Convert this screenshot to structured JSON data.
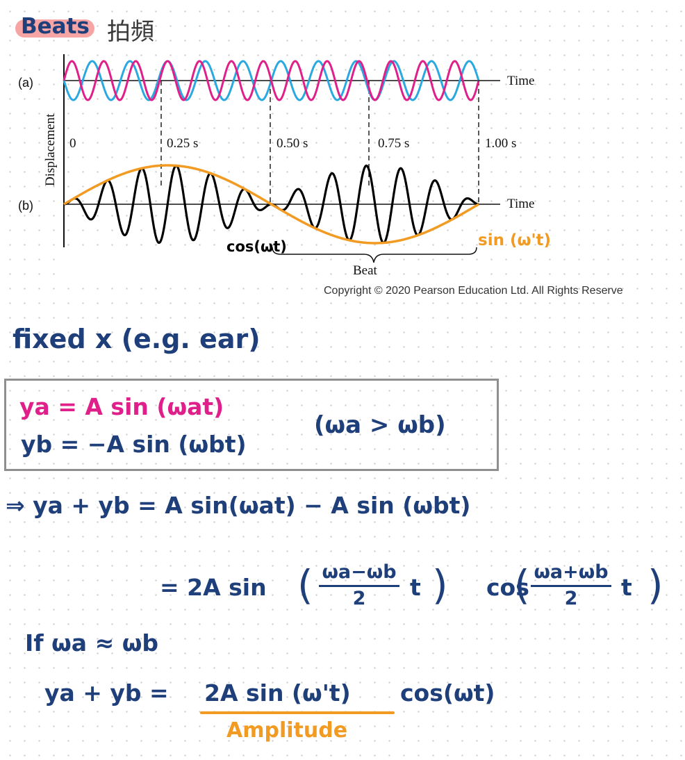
{
  "header": {
    "title": "Beats",
    "title_cjk": "拍頻"
  },
  "figure": {
    "panel_a_label": "(a)",
    "panel_b_label": "(b)",
    "y_axis_label": "Displacement",
    "time_label_a": "Time",
    "time_label_b": "Time",
    "tick_labels": [
      "0",
      "0.25 s",
      "0.50 s",
      "0.75 s",
      "1.00 s"
    ],
    "beat_label": "Beat",
    "annotation_cos": "cos(ωt)",
    "annotation_sin": "sin (ω't)",
    "colors": {
      "wave_a": "#e0208a",
      "wave_b": "#2aa8e0",
      "sum": "#000000",
      "envelope": "#f29b22"
    }
  },
  "copyright": "Copyright © 2020 Pearson Education Ltd. All Rights Reserve",
  "notes": {
    "fixed_line": "fixed x  (e.g. ear)",
    "ya": "ya = A sin (ωat)",
    "yb": "yb = −A sin (ωbt)",
    "condition": "(ωa > ωb)",
    "eq1": "⇒  ya + yb  =  A sin(ωat)  −  A sin (ωbt)",
    "eq2_left": "=  2A sin",
    "frac1_num": "ωa−ωb",
    "frac1_den": "2",
    "eq2_t1": "t",
    "eq2_cos": "cos",
    "frac2_num": "ωa+ωb",
    "frac2_den": "2",
    "eq2_t2": "t",
    "if_line": "If  ωa ≈ ωb",
    "final_left": "ya + yb  =",
    "final_amp": "2A sin (ω't)",
    "final_cos": "cos(ωt)",
    "amplitude_label": "Amplitude"
  }
}
